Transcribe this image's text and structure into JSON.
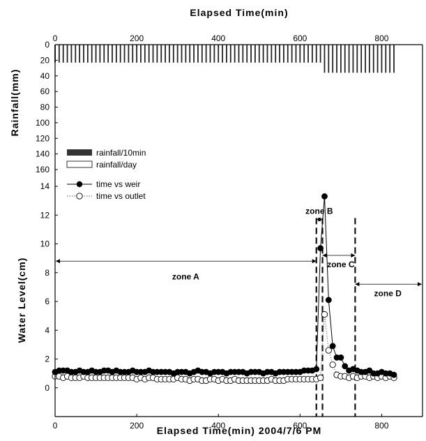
{
  "chart_data": [
    {
      "type": "bar",
      "panel": "rainfall",
      "title": "Elapsed Time(min)",
      "ylabel": "Rainfall(mm)",
      "xlim": [
        0,
        900
      ],
      "ylim": [
        160,
        0
      ],
      "x_ticks": [
        "0",
        "200",
        "400",
        "600",
        "800"
      ],
      "y_ticks": [
        "0",
        "20",
        "40",
        "60",
        "80",
        "100",
        "120",
        "140",
        "160"
      ],
      "legend": [
        "rainfall/10min",
        "rainfall/day"
      ],
      "series": [
        {
          "name": "rainfall/10min",
          "x_start": 0,
          "x_end": 830,
          "step": 10,
          "segments": [
            {
              "from": 0,
              "to": 655,
              "value": 23
            },
            {
              "from": 660,
              "to": 830,
              "value": 36
            }
          ]
        },
        {
          "name": "rainfall/day",
          "values": []
        }
      ]
    },
    {
      "type": "scatter",
      "panel": "water-level",
      "xlabel": "Elapsed Time(min) 2004/7/6 PM",
      "ylabel": "Water Level(cm)",
      "xlim": [
        0,
        900
      ],
      "ylim": [
        -2,
        14
      ],
      "x_ticks": [
        "0",
        "200",
        "400",
        "600",
        "800"
      ],
      "y_ticks": [
        "0",
        "2",
        "4",
        "6",
        "8",
        "10",
        "12",
        "14"
      ],
      "legend_position": "top-left",
      "series": [
        {
          "name": "time vs weir",
          "style": "line-filled-circle",
          "x": [
            0,
            10,
            20,
            30,
            40,
            50,
            60,
            70,
            80,
            90,
            100,
            110,
            120,
            130,
            140,
            150,
            160,
            170,
            180,
            190,
            200,
            210,
            220,
            230,
            240,
            250,
            260,
            270,
            280,
            290,
            300,
            310,
            320,
            330,
            340,
            350,
            360,
            370,
            380,
            390,
            400,
            410,
            420,
            430,
            440,
            450,
            460,
            470,
            480,
            490,
            500,
            510,
            520,
            530,
            540,
            550,
            560,
            570,
            580,
            590,
            600,
            610,
            620,
            630,
            640,
            650,
            660,
            670,
            680,
            690,
            700,
            710,
            720,
            730,
            740,
            750,
            760,
            770,
            780,
            790,
            800,
            810,
            820,
            830
          ],
          "y": [
            1.1,
            1.2,
            1.2,
            1.2,
            1.1,
            1.1,
            1.2,
            1.1,
            1.1,
            1.2,
            1.1,
            1.1,
            1.2,
            1.2,
            1.1,
            1.2,
            1.1,
            1.1,
            1.1,
            1.2,
            1.1,
            1.1,
            1.1,
            1.2,
            1.1,
            1.1,
            1.1,
            1.1,
            1.1,
            1.0,
            1.1,
            1.1,
            1.1,
            1.0,
            1.1,
            1.2,
            1.1,
            1.1,
            1.0,
            1.1,
            1.1,
            1.1,
            1.0,
            1.1,
            1.1,
            1.1,
            1.1,
            1.0,
            1.1,
            1.1,
            1.1,
            1.0,
            1.1,
            1.1,
            1.0,
            1.1,
            1.1,
            1.1,
            1.1,
            1.1,
            1.1,
            1.2,
            1.2,
            1.2,
            1.3,
            9.7,
            13.3,
            6.1,
            2.9,
            2.1,
            2.1,
            1.5,
            1.2,
            1.3,
            1.2,
            1.1,
            1.1,
            1.2,
            1.0,
            1.0,
            1.1,
            1.0,
            1.0,
            0.9
          ]
        },
        {
          "name": "time vs outlet",
          "style": "dotted-open-circle",
          "x": [
            0,
            10,
            20,
            30,
            40,
            50,
            60,
            70,
            80,
            90,
            100,
            110,
            120,
            130,
            140,
            150,
            160,
            170,
            180,
            190,
            200,
            210,
            220,
            230,
            240,
            250,
            260,
            270,
            280,
            290,
            300,
            310,
            320,
            330,
            340,
            350,
            360,
            370,
            380,
            390,
            400,
            410,
            420,
            430,
            440,
            450,
            460,
            470,
            480,
            490,
            500,
            510,
            520,
            530,
            540,
            550,
            560,
            570,
            580,
            590,
            600,
            610,
            620,
            630,
            640,
            650,
            660,
            670,
            680,
            690,
            700,
            710,
            720,
            730,
            740,
            750,
            760,
            770,
            780,
            790,
            800,
            810,
            820,
            830
          ],
          "y": [
            0.8,
            0.8,
            0.7,
            0.8,
            0.7,
            0.7,
            0.7,
            0.8,
            0.7,
            0.7,
            0.7,
            0.7,
            0.7,
            0.7,
            0.7,
            0.7,
            0.7,
            0.7,
            0.7,
            0.7,
            0.6,
            0.7,
            0.6,
            0.7,
            0.7,
            0.6,
            0.6,
            0.6,
            0.6,
            0.6,
            0.7,
            0.6,
            0.6,
            0.5,
            0.6,
            0.6,
            0.5,
            0.5,
            0.6,
            0.6,
            0.5,
            0.6,
            0.5,
            0.5,
            0.6,
            0.5,
            0.5,
            0.5,
            0.5,
            0.5,
            0.5,
            0.5,
            0.5,
            0.6,
            0.5,
            0.5,
            0.5,
            0.6,
            0.6,
            0.6,
            0.6,
            0.6,
            0.6,
            0.6,
            0.6,
            0.7,
            5.1,
            2.6,
            1.6,
            0.9,
            0.8,
            0.8,
            0.7,
            0.8,
            0.7,
            0.8,
            0.8,
            0.7,
            0.8,
            0.7,
            0.8,
            0.7,
            0.8,
            0.7
          ]
        }
      ],
      "zones": [
        {
          "label": "zone A",
          "from": 0,
          "to": 640
        },
        {
          "label": "zone B",
          "from": 640,
          "to": 655
        },
        {
          "label": "zone C",
          "from": 655,
          "to": 735
        },
        {
          "label": "zone D",
          "from": 735,
          "to": 900
        }
      ],
      "boundaries": [
        640,
        655,
        735
      ]
    }
  ]
}
